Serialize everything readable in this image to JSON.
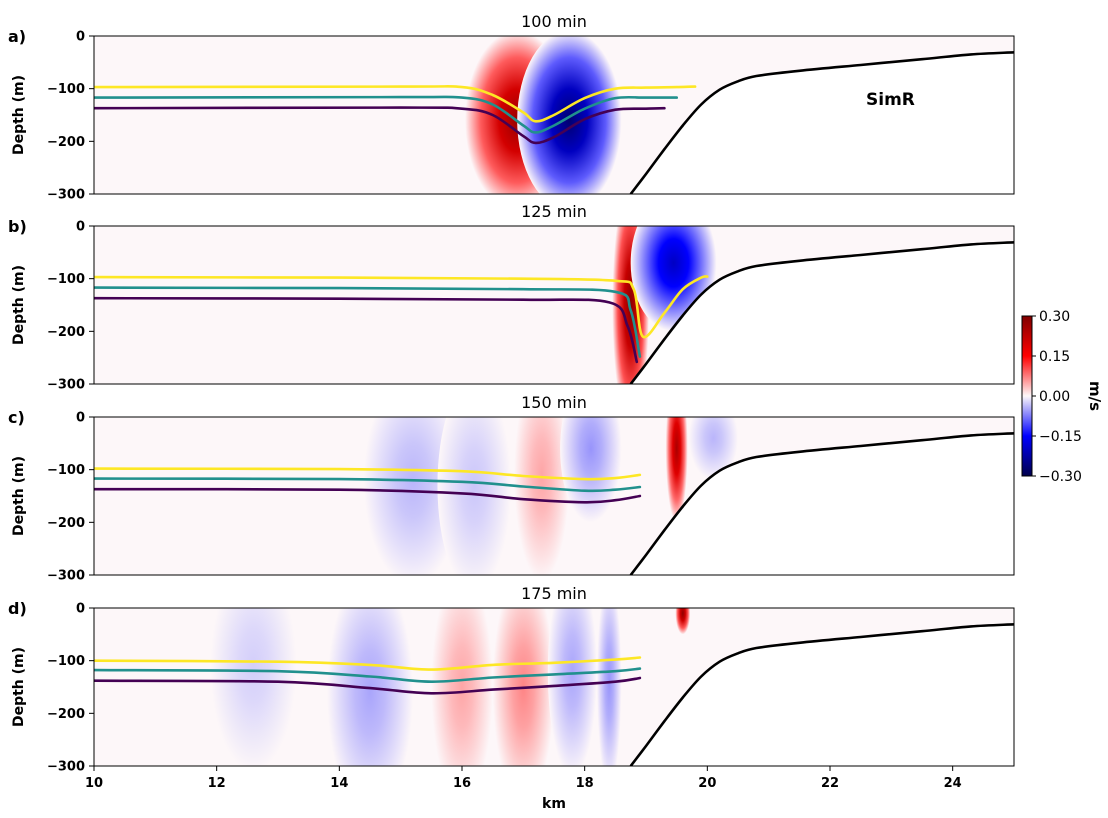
{
  "colors": {
    "background": "#fdf7f9",
    "positive": "#b40426",
    "negative": "#1a1ad6",
    "isopycnal_top": "#fde725",
    "isopycnal_mid": "#21908d",
    "isopycnal_bottom": "#440154",
    "bathymetry": "#000000"
  },
  "chart_data": {
    "type": "contourf-multipanel",
    "xlabel": "km",
    "ylabel": "Depth (m)",
    "xlim": [
      10,
      25
    ],
    "ylim": [
      -300,
      0
    ],
    "x_ticks": [
      10,
      12,
      14,
      16,
      18,
      20,
      22,
      24
    ],
    "y_ticks": [
      0,
      -100,
      -200,
      -300
    ],
    "annotation": "SimR",
    "bathymetry": {
      "x": [
        18.75,
        19.0,
        19.3,
        19.6,
        19.9,
        20.2,
        20.5,
        20.8,
        21.5,
        22.5,
        23.5,
        24.3,
        25.0
      ],
      "y": [
        -300,
        -262,
        -215,
        -170,
        -130,
        -102,
        -86,
        -76,
        -66,
        -55,
        -44,
        -35,
        -31
      ]
    },
    "colorbar": {
      "label": "m/s",
      "range": [
        -0.3,
        0.3
      ],
      "ticks": [
        0.3,
        0.15,
        0.0,
        -0.15,
        -0.3
      ],
      "tick_labels": [
        "0.30",
        "0.15",
        "0.00",
        "−0.15",
        "−0.30"
      ]
    },
    "panels": [
      {
        "letter": "a)",
        "title": "100 min",
        "isopycnals": [
          {
            "x": [
              10,
              15,
              16,
              16.5,
              17.0,
              17.2,
              17.5,
              18,
              18.5,
              19,
              19.5,
              19.8
            ],
            "y": [
              -97,
              -96,
              -97,
              -112,
              -145,
              -162,
              -150,
              -118,
              -100,
              -98,
              -97,
              -96
            ]
          },
          {
            "x": [
              10,
              15,
              16,
              16.5,
              17.0,
              17.2,
              17.5,
              18,
              18.5,
              19,
              19.5
            ],
            "y": [
              -117,
              -116,
              -117,
              -130,
              -170,
              -183,
              -170,
              -138,
              -118,
              -117,
              -117
            ]
          },
          {
            "x": [
              10,
              15,
              16,
              16.5,
              17.0,
              17.2,
              17.5,
              18,
              18.5,
              19,
              19.3
            ],
            "y": [
              -137,
              -136,
              -138,
              -150,
              -190,
              -203,
              -192,
              -158,
              -140,
              -138,
              -137
            ]
          }
        ],
        "blobs": [
          {
            "cx": 16.9,
            "cy": -160,
            "rx": 0.85,
            "ry": 170,
            "amp": 0.27
          },
          {
            "cx": 17.75,
            "cy": -160,
            "rx": 0.85,
            "ry": 170,
            "amp": -0.27
          }
        ]
      },
      {
        "letter": "b)",
        "title": "125 min",
        "isopycnals": [
          {
            "x": [
              10,
              14,
              17,
              18.5,
              18.8,
              18.95,
              19.3,
              19.6,
              19.9,
              20.0
            ],
            "y": [
              -97,
              -98,
              -100,
              -104,
              -120,
              -210,
              -165,
              -120,
              -98,
              -96
            ]
          },
          {
            "x": [
              10,
              14,
              17,
              18.5,
              18.75,
              18.9
            ],
            "y": [
              -117,
              -118,
              -120,
              -125,
              -160,
              -248
            ]
          },
          {
            "x": [
              10,
              14,
              17,
              18.4,
              18.7,
              18.85
            ],
            "y": [
              -137,
              -138,
              -140,
              -145,
              -190,
              -258
            ]
          }
        ],
        "blobs": [
          {
            "cx": 18.75,
            "cy": -150,
            "rx": 0.3,
            "ry": 230,
            "amp": 0.29
          },
          {
            "cx": 19.45,
            "cy": -70,
            "rx": 0.7,
            "ry": 130,
            "amp": -0.2
          }
        ]
      },
      {
        "letter": "c)",
        "title": "150 min",
        "isopycnals": [
          {
            "x": [
              10,
              14,
              16,
              17,
              18,
              18.5,
              18.9
            ],
            "y": [
              -98,
              -99,
              -103,
              -112,
              -118,
              -116,
              -110
            ]
          },
          {
            "x": [
              10,
              14,
              16,
              17,
              18,
              18.5,
              18.9
            ],
            "y": [
              -117,
              -118,
              -123,
              -132,
              -140,
              -138,
              -133
            ]
          },
          {
            "x": [
              10,
              14,
              16,
              17,
              18,
              18.5,
              18.9
            ],
            "y": [
              -137,
              -138,
              -145,
              -156,
              -162,
              -158,
              -150
            ]
          }
        ],
        "blobs": [
          {
            "cx": 15.2,
            "cy": -120,
            "rx": 0.8,
            "ry": 200,
            "amp": -0.04
          },
          {
            "cx": 16.2,
            "cy": -130,
            "rx": 0.6,
            "ry": 200,
            "amp": -0.03
          },
          {
            "cx": 17.3,
            "cy": -110,
            "rx": 0.45,
            "ry": 200,
            "amp": 0.05
          },
          {
            "cx": 18.1,
            "cy": -60,
            "rx": 0.5,
            "ry": 140,
            "amp": -0.06
          },
          {
            "cx": 19.5,
            "cy": -60,
            "rx": 0.18,
            "ry": 140,
            "amp": 0.25
          },
          {
            "cx": 20.1,
            "cy": -40,
            "rx": 0.4,
            "ry": 80,
            "amp": -0.04
          }
        ]
      },
      {
        "letter": "d)",
        "title": "175 min",
        "isopycnals": [
          {
            "x": [
              10,
              13,
              14.5,
              15.5,
              16.5,
              17.5,
              18.5,
              18.9
            ],
            "y": [
              -100,
              -102,
              -108,
              -117,
              -108,
              -104,
              -98,
              -94
            ]
          },
          {
            "x": [
              10,
              13,
              14.5,
              15.5,
              16.5,
              17.5,
              18.5,
              18.9
            ],
            "y": [
              -118,
              -120,
              -130,
              -140,
              -132,
              -126,
              -120,
              -115
            ]
          },
          {
            "x": [
              10,
              13,
              14.5,
              15.5,
              16.5,
              17.5,
              18.5,
              18.9
            ],
            "y": [
              -138,
              -140,
              -152,
              -162,
              -155,
              -148,
              -140,
              -133
            ]
          }
        ],
        "blobs": [
          {
            "cx": 12.6,
            "cy": -110,
            "rx": 0.7,
            "ry": 200,
            "amp": -0.025
          },
          {
            "cx": 14.5,
            "cy": -160,
            "rx": 0.7,
            "ry": 230,
            "amp": -0.05
          },
          {
            "cx": 16.0,
            "cy": -150,
            "rx": 0.5,
            "ry": 220,
            "amp": 0.05
          },
          {
            "cx": 17.0,
            "cy": -150,
            "rx": 0.5,
            "ry": 220,
            "amp": 0.07
          },
          {
            "cx": 17.8,
            "cy": -120,
            "rx": 0.4,
            "ry": 200,
            "amp": -0.05
          },
          {
            "cx": 18.4,
            "cy": -140,
            "rx": 0.2,
            "ry": 200,
            "amp": -0.06
          },
          {
            "cx": 19.6,
            "cy": -10,
            "rx": 0.12,
            "ry": 40,
            "amp": 0.28
          }
        ]
      }
    ]
  }
}
